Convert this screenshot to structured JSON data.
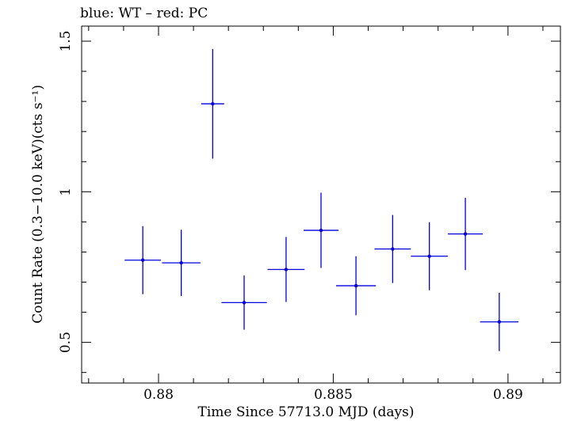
{
  "chart_data": {
    "type": "scatter",
    "title": "blue: WT – red: PC",
    "xlabel": "Time Since 57713.0 MJD (days)",
    "ylabel": "Count Rate (0.3−10.0 keV)(cts s⁻¹)",
    "xlim": [
      0.8778,
      0.8915
    ],
    "ylim": [
      0.365,
      1.55
    ],
    "xticks": [
      0.88,
      0.885,
      0.89
    ],
    "xtick_labels": [
      "0.88",
      "0.885",
      "0.89"
    ],
    "yticks": [
      0.5,
      1.0,
      1.5
    ],
    "ytick_labels": [
      "0.5",
      "1",
      "1.5"
    ],
    "grid": false,
    "series": [
      {
        "color": "#0000dd",
        "points": [
          {
            "x": 0.87955,
            "y": 0.773,
            "xerr": 0.00052,
            "yerr": 0.113
          },
          {
            "x": 0.88065,
            "y": 0.764,
            "xerr": 0.00055,
            "yerr": 0.11
          },
          {
            "x": 0.88155,
            "y": 1.292,
            "xerr": 0.00033,
            "yerr": 0.182
          },
          {
            "x": 0.88245,
            "y": 0.632,
            "xerr": 0.00065,
            "yerr": 0.09
          },
          {
            "x": 0.88365,
            "y": 0.742,
            "xerr": 0.00053,
            "yerr": 0.108
          },
          {
            "x": 0.88465,
            "y": 0.872,
            "xerr": 0.0005,
            "yerr": 0.125
          },
          {
            "x": 0.88565,
            "y": 0.688,
            "xerr": 0.00057,
            "yerr": 0.098
          },
          {
            "x": 0.8867,
            "y": 0.81,
            "xerr": 0.00052,
            "yerr": 0.113
          },
          {
            "x": 0.88775,
            "y": 0.786,
            "xerr": 0.00053,
            "yerr": 0.113
          },
          {
            "x": 0.88878,
            "y": 0.86,
            "xerr": 0.0005,
            "yerr": 0.12
          },
          {
            "x": 0.88975,
            "y": 0.568,
            "xerr": 0.00055,
            "yerr": 0.097
          }
        ]
      }
    ]
  }
}
